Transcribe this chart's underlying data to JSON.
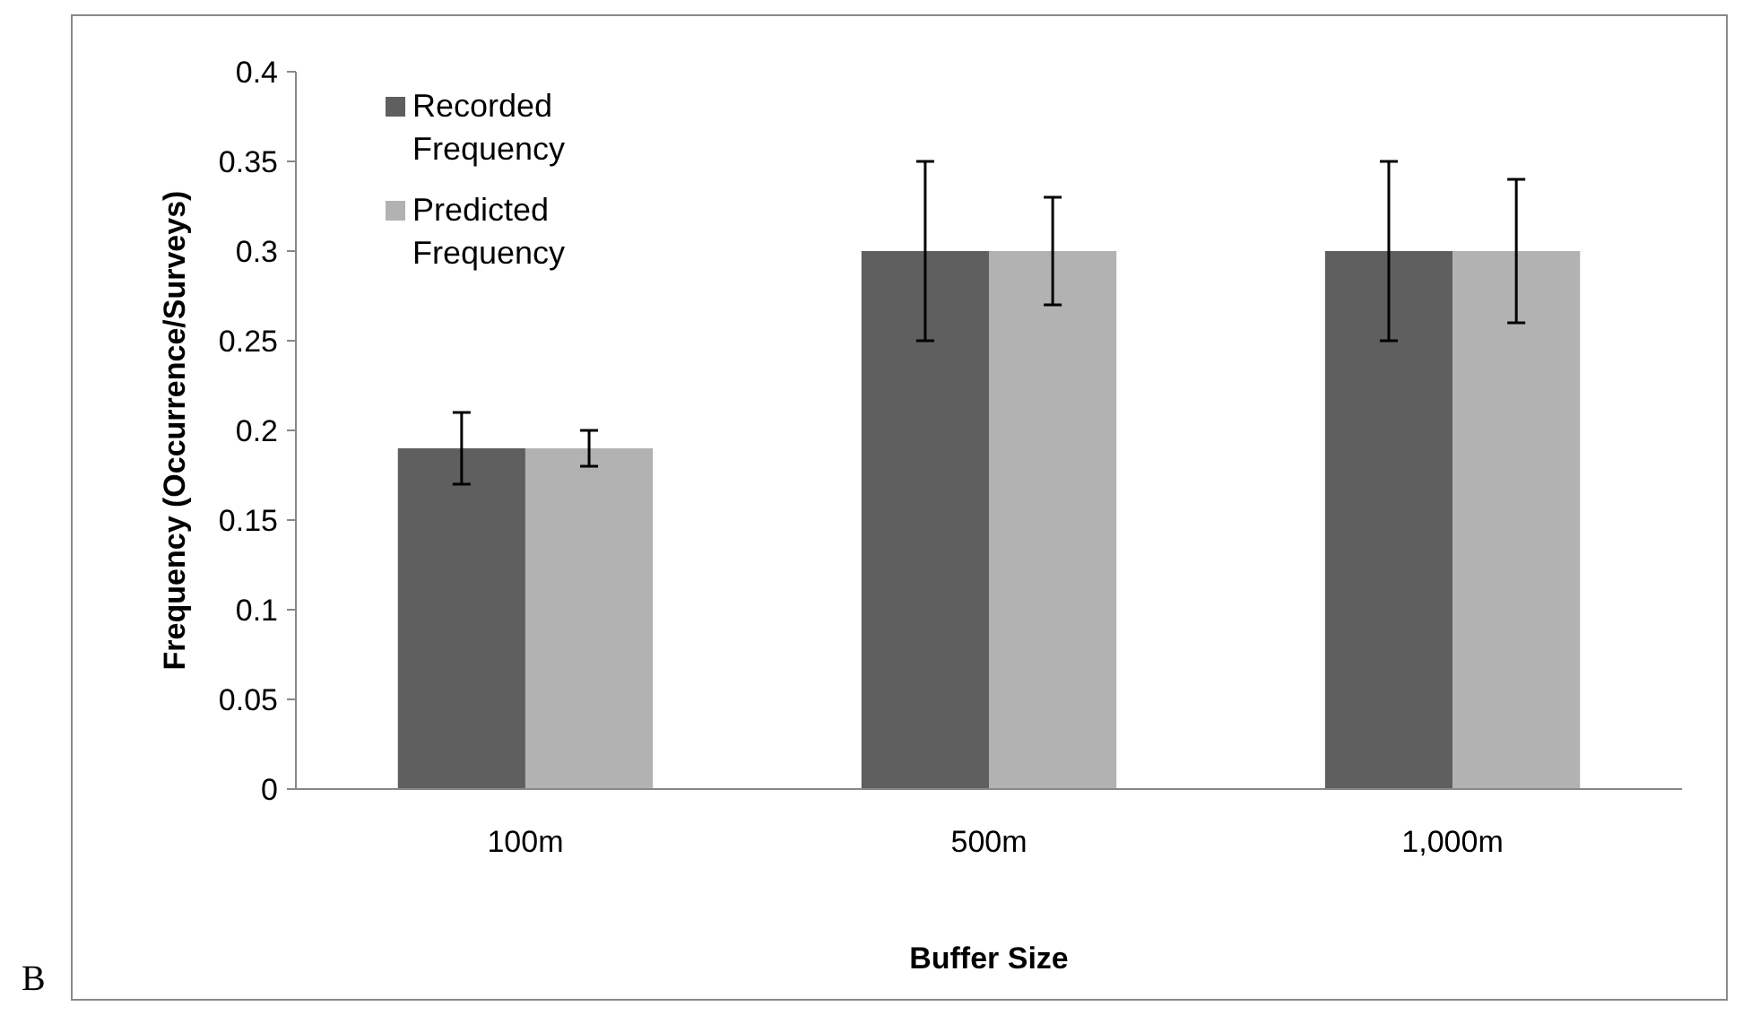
{
  "chart_data": {
    "type": "bar",
    "xlabel": "Buffer Size",
    "ylabel": "Frequency (Occurrence/Surveys)",
    "categories": [
      "100m",
      "500m",
      "1,000m"
    ],
    "series": [
      {
        "name": "Recorded Frequency",
        "color": "#5f5f5f",
        "values": [
          0.19,
          0.3,
          0.3
        ],
        "errors": [
          0.02,
          0.05,
          0.05
        ]
      },
      {
        "name": "Predicted Frequency",
        "color": "#b2b2b2",
        "values": [
          0.19,
          0.3,
          0.3
        ],
        "errors": [
          0.01,
          0.03,
          0.04
        ]
      }
    ],
    "ylim": [
      0,
      0.4
    ],
    "yticks": [
      0,
      0.05,
      0.1,
      0.15,
      0.2,
      0.25,
      0.3,
      0.35,
      0.4
    ],
    "grid": false,
    "legend": "top left",
    "annotations": [
      "B"
    ]
  }
}
